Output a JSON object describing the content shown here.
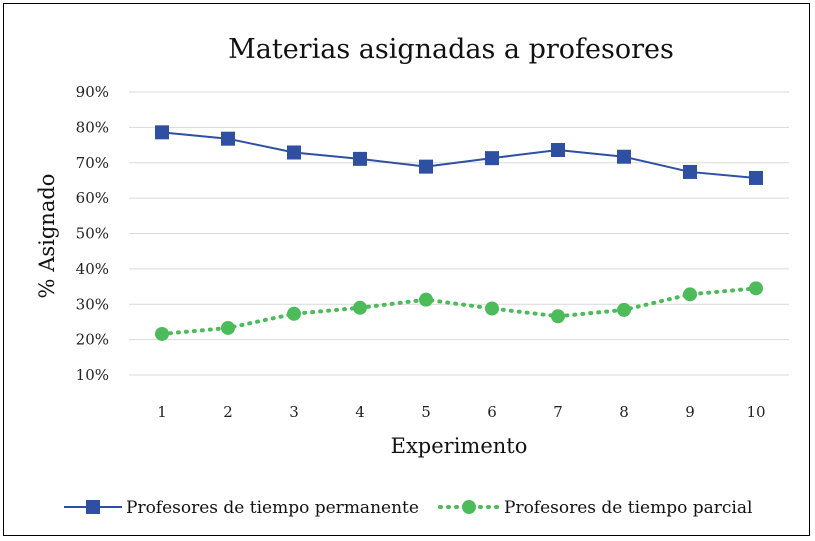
{
  "chart_data": {
    "type": "line",
    "title": "Materias asignadas a profesores",
    "xlabel": "Experimento",
    "ylabel": "% Asignado",
    "categories": [
      "1",
      "2",
      "3",
      "4",
      "5",
      "6",
      "7",
      "8",
      "9",
      "10"
    ],
    "y_ticks": [
      "10%",
      "20%",
      "30%",
      "40%",
      "50%",
      "60%",
      "70%",
      "80%",
      "90%"
    ],
    "ylim": [
      10,
      90
    ],
    "grid": true,
    "legend_position": "bottom",
    "series": [
      {
        "name": "Profesores de tiempo permanente",
        "values": [
          78.6,
          76.8,
          72.9,
          71.1,
          68.9,
          71.3,
          73.6,
          71.7,
          67.4,
          65.7
        ],
        "color": "#2f4fa3",
        "marker": "square",
        "line": "solid"
      },
      {
        "name": "Profesores de tiempo parcial",
        "values": [
          21.6,
          23.3,
          27.3,
          29.0,
          31.3,
          28.8,
          26.6,
          28.4,
          32.8,
          34.5
        ],
        "color": "#4cbb5a",
        "marker": "circle",
        "line": "dotted"
      }
    ],
    "grid_color": "#d9d9d9"
  }
}
